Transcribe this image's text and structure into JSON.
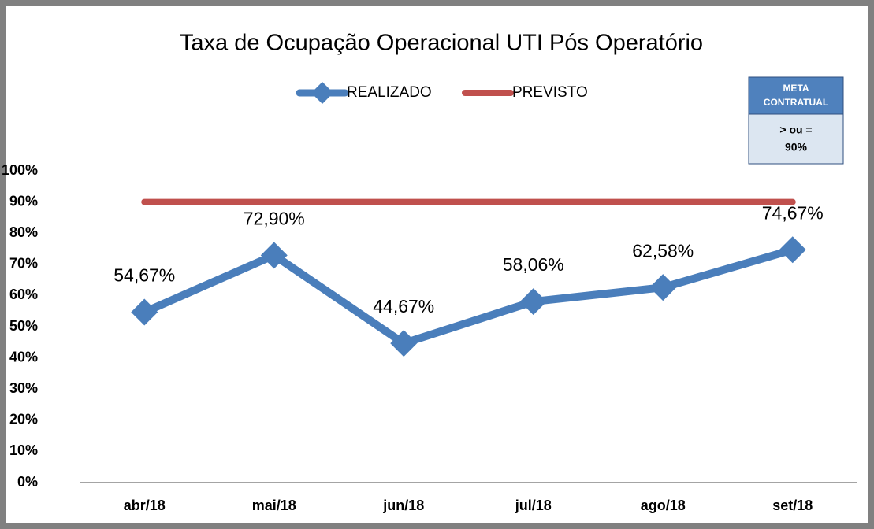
{
  "chart_data": {
    "type": "line",
    "title": "Taxa de Ocupação Operacional UTI Pós Operatório",
    "categories": [
      "abr/18",
      "mai/18",
      "jun/18",
      "jul/18",
      "ago/18",
      "set/18"
    ],
    "series": [
      {
        "name": "REALIZADO",
        "color": "#4a7ebb",
        "marker": "diamond",
        "values": [
          54.67,
          72.9,
          44.67,
          58.06,
          62.58,
          74.67
        ],
        "value_labels": [
          "54,67%",
          "72,90%",
          "44,67%",
          "58,06%",
          "62,58%",
          "74,67%"
        ]
      },
      {
        "name": "PREVISTO",
        "color": "#c0504d",
        "values": [
          90,
          90,
          90,
          90,
          90,
          90
        ]
      }
    ],
    "ylim": [
      0,
      100
    ],
    "yticks": [
      {
        "value": 0,
        "label": "0%"
      },
      {
        "value": 10,
        "label": "10%"
      },
      {
        "value": 20,
        "label": "20%"
      },
      {
        "value": 30,
        "label": "30%"
      },
      {
        "value": 40,
        "label": "40%"
      },
      {
        "value": 50,
        "label": "50%"
      },
      {
        "value": 60,
        "label": "60%"
      },
      {
        "value": 70,
        "label": "70%"
      },
      {
        "value": 80,
        "label": "80%"
      },
      {
        "value": 90,
        "label": "90%"
      },
      {
        "value": 100,
        "label": "100%"
      }
    ],
    "grid": false,
    "legend": "top",
    "meta_box": {
      "header": [
        "META",
        "CONTRATUAL"
      ],
      "body": [
        "> ou =",
        "90%"
      ]
    }
  }
}
